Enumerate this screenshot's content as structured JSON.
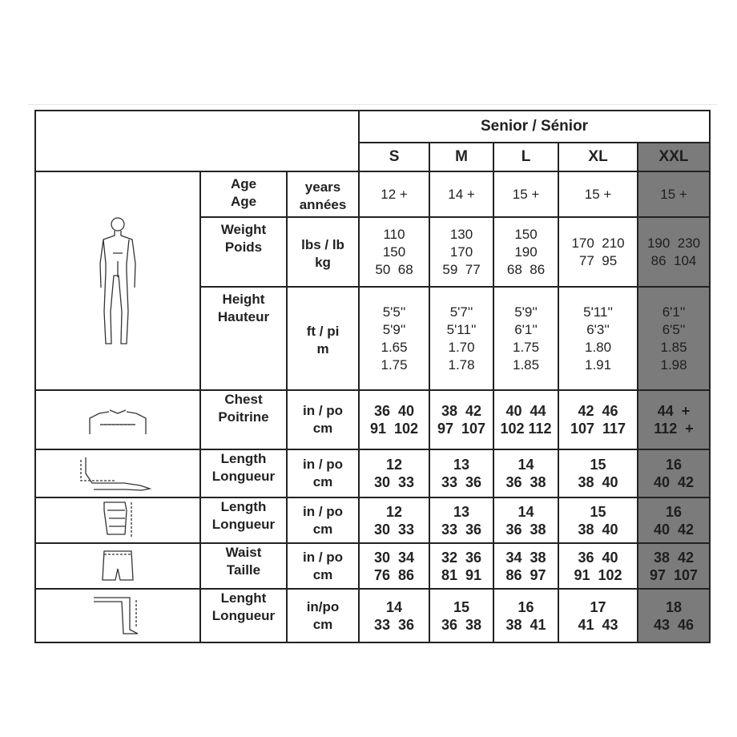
{
  "header": {
    "group": "Senior / Sénior",
    "sizes": [
      "S",
      "M",
      "L",
      "XL",
      "XXL"
    ]
  },
  "highlight_color": "#7b7b7b",
  "rows": [
    {
      "icon": "body-figure-icon",
      "label": [
        "Age",
        "Age"
      ],
      "unit": [
        "years",
        "années"
      ],
      "bold": false,
      "values": [
        [
          "12 +"
        ],
        [
          "14 +"
        ],
        [
          "15 +"
        ],
        [
          "15 +"
        ],
        [
          "15 +"
        ]
      ]
    },
    {
      "icon": "body-figure-icon",
      "label": [
        "Weight",
        "Poids"
      ],
      "unit": [
        "lbs / lb",
        "kg"
      ],
      "bold": false,
      "values": [
        [
          "110",
          "150",
          "50  68"
        ],
        [
          "130",
          "170",
          "59  77"
        ],
        [
          "150",
          "190",
          "68  86"
        ],
        [
          "170  210",
          "77  95"
        ],
        [
          "190  230",
          "86  104"
        ]
      ]
    },
    {
      "icon": "body-figure-icon",
      "label": [
        "Height",
        "Hauteur"
      ],
      "unit": [
        "ft / pi",
        "m"
      ],
      "bold": false,
      "values": [
        [
          "5'5''",
          "5'9''",
          "1.65",
          "1.75"
        ],
        [
          "5'7''",
          "5'11''",
          "1.70",
          "1.78"
        ],
        [
          "5'9''",
          "6'1''",
          "1.75",
          "1.85"
        ],
        [
          "5'11''",
          "6'3''",
          "1.80",
          "1.91"
        ],
        [
          "6'1''",
          "6'5''",
          "1.85",
          "1.98"
        ]
      ]
    },
    {
      "icon": "chest-measure-icon",
      "label": [
        "Chest",
        "Poitrine"
      ],
      "unit": [
        "in / po",
        "cm"
      ],
      "bold": true,
      "values": [
        [
          "36  40",
          "91  102"
        ],
        [
          "38  42",
          "97  107"
        ],
        [
          "40  44",
          "102 112"
        ],
        [
          "42  46",
          "107  117"
        ],
        [
          "44  +",
          "112  +"
        ]
      ]
    },
    {
      "icon": "arm-length-icon",
      "label": [
        "Length",
        "Longueur"
      ],
      "unit": [
        "in / po",
        "cm"
      ],
      "bold": true,
      "values": [
        [
          "12",
          "30  33"
        ],
        [
          "13",
          "33  36"
        ],
        [
          "14",
          "36  38"
        ],
        [
          "15",
          "38  40"
        ],
        [
          "16",
          "40  42"
        ]
      ]
    },
    {
      "icon": "glove-length-icon",
      "label": [
        "Length",
        "Longueur"
      ],
      "unit": [
        "in / po",
        "cm"
      ],
      "bold": true,
      "values": [
        [
          "12",
          "30  33"
        ],
        [
          "13",
          "33  36"
        ],
        [
          "14",
          "36  38"
        ],
        [
          "15",
          "38  40"
        ],
        [
          "16",
          "40  42"
        ]
      ]
    },
    {
      "icon": "pants-waist-icon",
      "label": [
        "Waist",
        "Taille"
      ],
      "unit": [
        "in / po",
        "cm"
      ],
      "bold": true,
      "values": [
        [
          "30  34",
          "76  86"
        ],
        [
          "32  36",
          "81  91"
        ],
        [
          "34  38",
          "86  97"
        ],
        [
          "36  40",
          "91  102"
        ],
        [
          "38  42",
          "97  107"
        ]
      ]
    },
    {
      "icon": "leg-length-icon",
      "label": [
        "Lenght",
        "Longueur"
      ],
      "unit": [
        "in/po",
        "cm"
      ],
      "bold": true,
      "values": [
        [
          "14",
          "33  36"
        ],
        [
          "15",
          "36  38"
        ],
        [
          "16",
          "38  41"
        ],
        [
          "17",
          "41  43"
        ],
        [
          "18",
          "43  46"
        ]
      ]
    }
  ]
}
